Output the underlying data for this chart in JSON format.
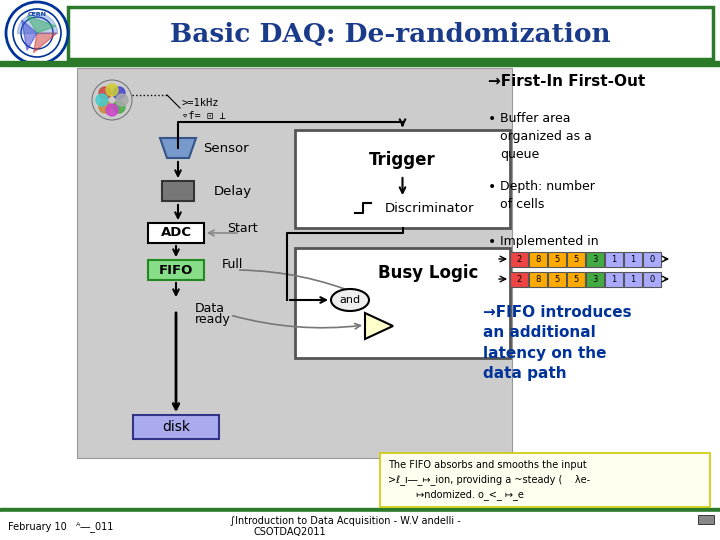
{
  "title": "Basic DAQ: De-randomization",
  "title_color": "#1a3a8a",
  "title_border": "#2a7a2a",
  "bg_color": "#ffffff",
  "footer_bar_color": "#2a7a2a",
  "freq_text1": ">=1kHz",
  "freq_text2": "⌔f= ⊡_⊥",
  "right_title": "→First-In First-Out",
  "bullet1": "Buffer area\norganized as a\nqueue",
  "bullet2": "Depth: number\nof cells",
  "bullet3": "Implemented in",
  "fifo_text": "→FIFO introduces\nan additional\nlatency on the\ndata path",
  "note_text": "The FIFO absorbs and smooths the input\n>ℓ_ı―_↦_ion, providing a ~steady (    λe-\n         ↦ndomized. o_<_ ↦_e",
  "note_bg": "#fffff0",
  "note_border": "#cccc00",
  "cell_colors": [
    "#ee4444",
    "#ffaa00",
    "#ffaa00",
    "#ffaa00",
    "#44aa44",
    "#aaaaff",
    "#aaaaff",
    "#aaaaff"
  ],
  "cell_nums": [
    "2",
    "8",
    "5",
    "5",
    "3",
    "1",
    "1",
    "0"
  ],
  "cell_colors2": [
    "#ee4444",
    "#ffaa00",
    "#ffaa00",
    "#ffaa00",
    "#44aa44",
    "#aaaaff",
    "#aaaaff",
    "#aaaaff"
  ],
  "cell_nums2": [
    "2",
    "8",
    "5",
    "5",
    "3",
    "1",
    "1",
    "0"
  ]
}
